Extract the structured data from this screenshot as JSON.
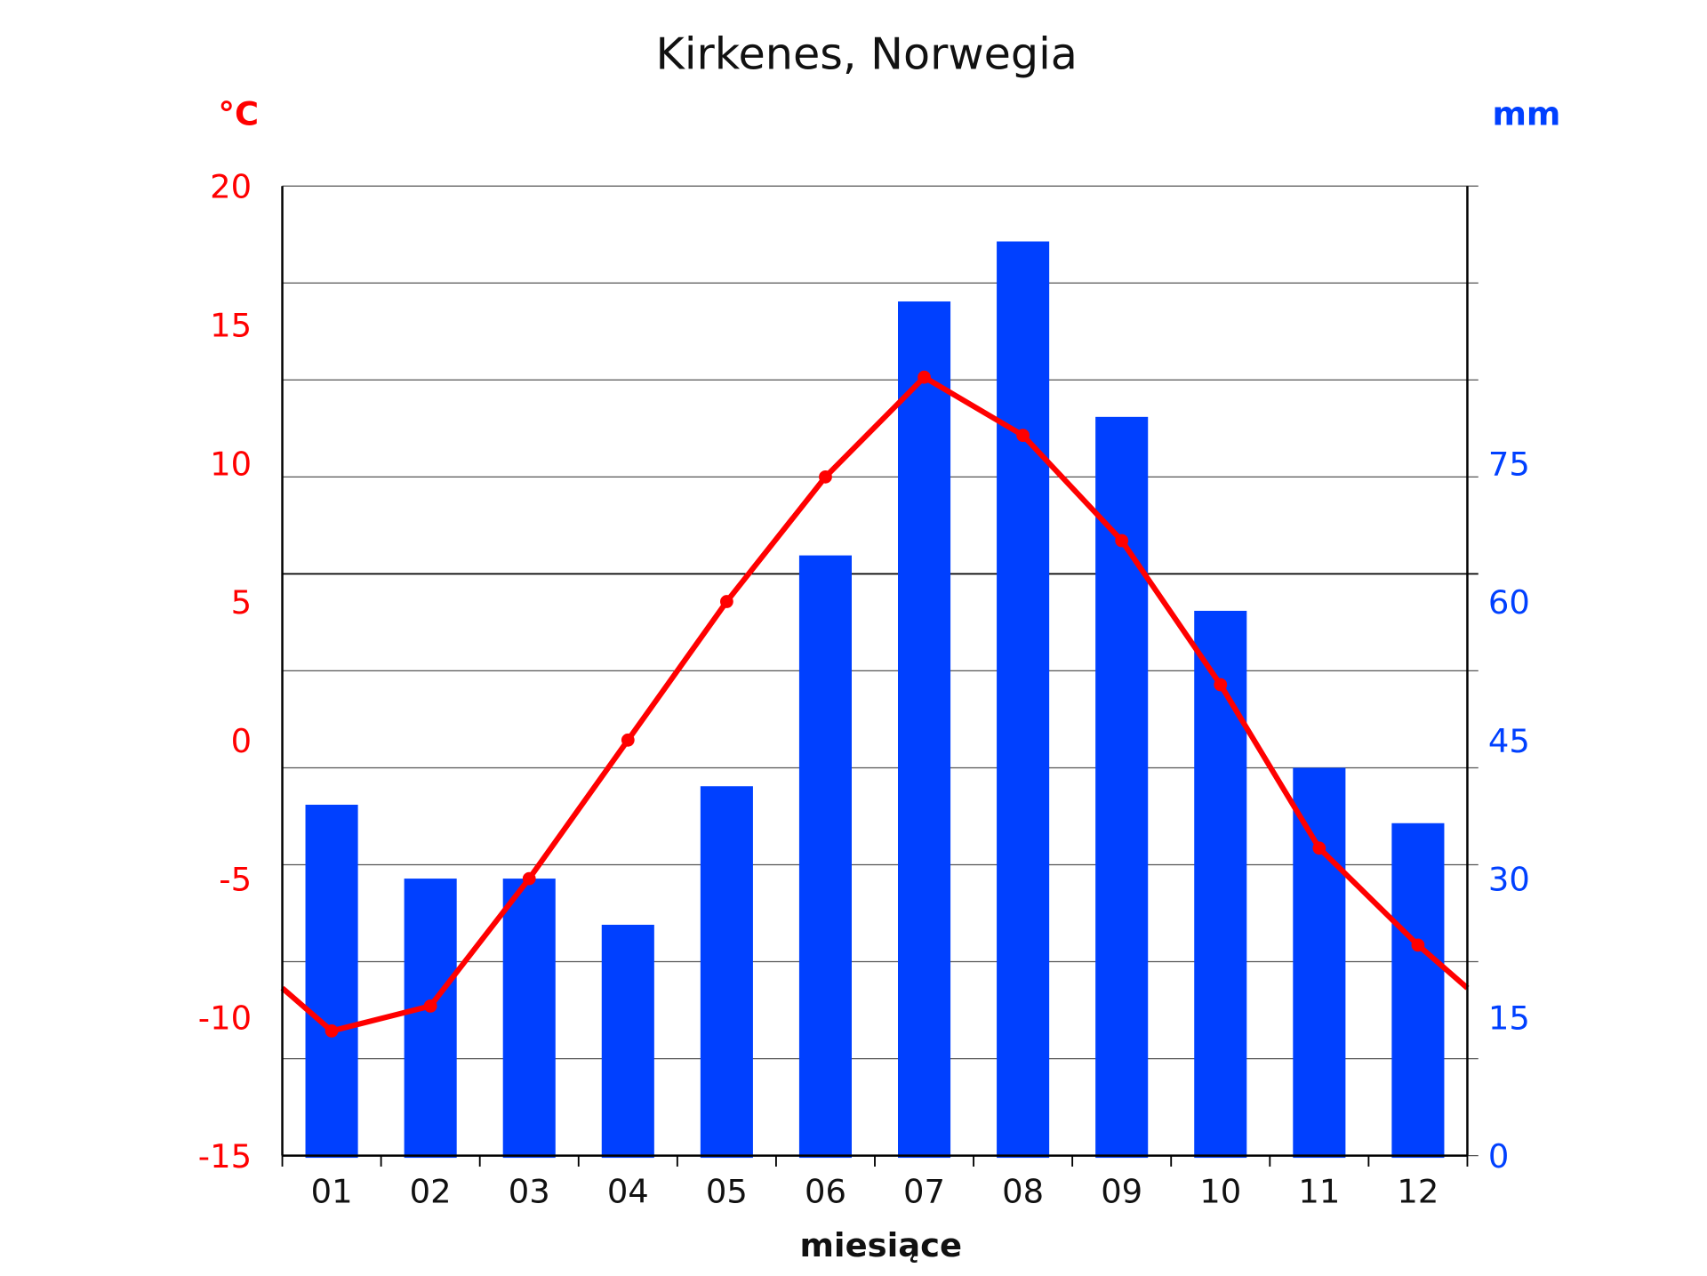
{
  "chart_data": {
    "type": "bar+line",
    "title": "Kirkenes, Norwegia",
    "xlabel": "miesiące",
    "categories": [
      "01",
      "02",
      "03",
      "04",
      "05",
      "06",
      "07",
      "08",
      "09",
      "10",
      "11",
      "12"
    ],
    "left_axis": {
      "unit": "°C",
      "ylim": [
        -15,
        20
      ],
      "ticks": [
        "20",
        "15",
        "10",
        "5",
        "0",
        "-5",
        "-10",
        "-15"
      ],
      "color": "#ff0000"
    },
    "right_axis": {
      "unit": "mm",
      "ylim": [
        0,
        105
      ],
      "ticks": [
        "0",
        "15",
        "30",
        "45",
        "60",
        "75"
      ],
      "color": "#0040ff"
    },
    "series": [
      {
        "type": "bar",
        "axis": "right",
        "color": "#0040ff",
        "values": [
          38,
          30,
          30,
          25,
          40,
          65,
          92.5,
          99,
          80,
          59,
          42,
          36
        ]
      },
      {
        "type": "line",
        "axis": "left",
        "color": "#ff0000",
        "values": [
          -10.5,
          -9.6,
          -5.0,
          0.0,
          5.0,
          9.5,
          13.1,
          11.0,
          7.2,
          2.0,
          -3.9,
          -7.4
        ]
      }
    ],
    "grid": true
  }
}
